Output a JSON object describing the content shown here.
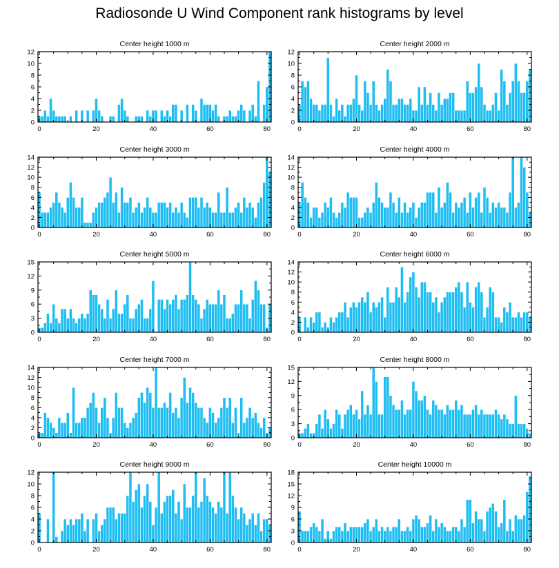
{
  "chart_data": {
    "title": "Radiosonde U Wind Component rank histograms by level",
    "type": "bar",
    "bar_color": "#1ebdf2",
    "x_ticks": [
      0,
      20,
      40,
      60,
      80
    ],
    "xlim": [
      -0.5,
      81.5
    ],
    "panels": [
      {
        "title": "Center height 1000 m",
        "ylim": [
          0,
          12
        ],
        "y_ticks": [
          0,
          2,
          4,
          6,
          8,
          10,
          12
        ],
        "values": [
          1,
          1,
          2,
          1,
          4,
          2,
          1,
          1,
          1,
          1,
          0,
          1,
          0,
          2,
          0,
          2,
          0,
          2,
          0,
          2,
          4,
          2,
          1,
          0,
          0,
          1,
          1,
          0,
          3,
          4,
          2,
          1,
          0,
          0,
          1,
          1,
          1,
          0,
          2,
          1,
          2,
          2,
          0,
          2,
          1,
          2,
          1,
          3,
          3,
          0,
          2,
          0,
          3,
          0,
          3,
          2,
          0,
          4,
          3,
          3,
          3,
          2,
          3,
          1,
          0,
          1,
          1,
          2,
          1,
          1,
          2,
          3,
          2,
          0,
          2,
          3,
          1,
          7,
          0,
          3,
          6,
          12
        ]
      },
      {
        "title": "Center height 2000 m",
        "ylim": [
          0,
          12
        ],
        "y_ticks": [
          0,
          2,
          4,
          6,
          8,
          10,
          12
        ],
        "values": [
          3,
          7,
          6,
          7,
          4,
          3,
          3,
          2,
          3,
          3,
          11,
          3,
          1,
          4,
          2,
          3,
          1,
          3,
          3,
          4,
          8,
          3,
          2,
          7,
          5,
          3,
          7,
          3,
          2,
          3,
          4,
          9,
          7,
          3,
          3,
          4,
          4,
          3,
          3,
          4,
          2,
          2,
          6,
          3,
          6,
          3,
          5,
          3,
          2,
          5,
          3,
          4,
          4,
          5,
          5,
          2,
          2,
          2,
          2,
          7,
          5,
          5,
          6,
          10,
          6,
          3,
          2,
          2,
          3,
          5,
          2,
          9,
          7,
          3,
          5,
          7,
          10,
          7,
          5,
          5,
          7,
          9
        ]
      },
      {
        "title": "Center height 3000 m",
        "ylim": [
          0,
          14
        ],
        "y_ticks": [
          0,
          2,
          4,
          6,
          8,
          10,
          12,
          14
        ],
        "values": [
          7,
          3,
          3,
          3,
          4,
          5,
          7,
          5,
          4,
          3,
          6,
          9,
          6,
          4,
          4,
          6,
          1,
          1,
          1,
          3,
          4,
          5,
          5,
          6,
          7,
          10,
          5,
          7,
          3,
          8,
          5,
          5,
          6,
          3,
          4,
          5,
          3,
          4,
          6,
          4,
          3,
          3,
          5,
          5,
          5,
          4,
          5,
          3,
          4,
          3,
          5,
          3,
          2,
          6,
          6,
          6,
          4,
          6,
          4,
          5,
          4,
          3,
          3,
          7,
          3,
          3,
          8,
          3,
          3,
          4,
          5,
          3,
          6,
          4,
          5,
          4,
          2,
          5,
          6,
          9,
          14,
          11
        ]
      },
      {
        "title": "Center height 4000 m",
        "ylim": [
          0,
          14
        ],
        "y_ticks": [
          0,
          2,
          4,
          6,
          8,
          10,
          12,
          14
        ],
        "values": [
          5,
          9,
          6,
          5,
          2,
          4,
          4,
          2,
          3,
          5,
          4,
          6,
          3,
          2,
          3,
          5,
          4,
          7,
          6,
          6,
          6,
          2,
          2,
          3,
          4,
          3,
          5,
          9,
          6,
          5,
          4,
          4,
          7,
          5,
          3,
          6,
          3,
          5,
          3,
          4,
          5,
          2,
          4,
          5,
          5,
          7,
          7,
          7,
          3,
          8,
          4,
          5,
          9,
          7,
          3,
          5,
          4,
          5,
          6,
          3,
          7,
          4,
          6,
          7,
          3,
          8,
          6,
          3,
          5,
          4,
          5,
          4,
          4,
          3,
          7,
          14,
          4,
          5,
          14,
          12,
          7,
          3
        ]
      },
      {
        "title": "Center height 5000 m",
        "ylim": [
          0,
          15
        ],
        "y_ticks": [
          0,
          3,
          6,
          9,
          12,
          15
        ],
        "values": [
          1,
          1,
          2,
          4,
          2,
          6,
          3,
          2,
          5,
          5,
          3,
          5,
          3,
          2,
          3,
          4,
          3,
          4,
          9,
          8,
          8,
          6,
          5,
          3,
          7,
          3,
          5,
          9,
          4,
          4,
          6,
          8,
          3,
          3,
          5,
          6,
          7,
          3,
          3,
          5,
          11,
          0,
          7,
          7,
          5,
          7,
          6,
          7,
          8,
          5,
          7,
          7,
          8,
          15,
          8,
          7,
          6,
          3,
          5,
          7,
          6,
          6,
          6,
          9,
          6,
          8,
          3,
          3,
          4,
          6,
          6,
          9,
          6,
          6,
          3,
          7,
          11,
          9,
          6,
          6,
          1,
          6
        ]
      },
      {
        "title": "Center height 6000 m",
        "ylim": [
          0,
          14
        ],
        "y_ticks": [
          0,
          2,
          4,
          6,
          8,
          10,
          12,
          14
        ],
        "values": [
          3,
          0,
          3,
          1,
          3,
          2,
          4,
          4,
          1,
          2,
          1,
          3,
          2,
          3,
          4,
          4,
          6,
          3,
          5,
          6,
          5,
          6,
          7,
          6,
          8,
          4,
          6,
          5,
          6,
          7,
          3,
          9,
          6,
          6,
          9,
          7,
          13,
          6,
          8,
          11,
          12,
          9,
          7,
          10,
          10,
          8,
          8,
          6,
          7,
          4,
          6,
          7,
          8,
          8,
          8,
          9,
          10,
          8,
          5,
          10,
          6,
          5,
          9,
          10,
          8,
          3,
          5,
          9,
          8,
          3,
          3,
          2,
          5,
          4,
          6,
          3,
          3,
          4,
          3,
          4,
          4,
          3
        ]
      },
      {
        "title": "Center height 7000 m",
        "ylim": [
          0,
          14
        ],
        "y_ticks": [
          0,
          2,
          4,
          6,
          8,
          10,
          12,
          14
        ],
        "values": [
          1,
          1,
          5,
          4,
          3,
          2,
          1,
          4,
          3,
          3,
          5,
          1,
          10,
          3,
          3,
          4,
          4,
          6,
          7,
          9,
          6,
          3,
          6,
          8,
          4,
          1,
          4,
          9,
          6,
          6,
          3,
          2,
          3,
          4,
          5,
          8,
          9,
          7,
          10,
          9,
          6,
          14,
          6,
          6,
          7,
          6,
          9,
          5,
          6,
          4,
          8,
          12,
          7,
          10,
          9,
          7,
          6,
          6,
          4,
          3,
          6,
          5,
          3,
          4,
          6,
          8,
          6,
          8,
          3,
          6,
          1,
          8,
          3,
          4,
          6,
          4,
          5,
          3,
          2,
          4,
          1,
          2
        ]
      },
      {
        "title": "Center height 8000 m",
        "ylim": [
          0,
          15
        ],
        "y_ticks": [
          0,
          3,
          6,
          9,
          12,
          15
        ],
        "values": [
          1,
          1,
          2,
          3,
          1,
          1,
          3,
          5,
          2,
          6,
          4,
          2,
          3,
          6,
          5,
          2,
          5,
          6,
          7,
          5,
          6,
          4,
          10,
          5,
          7,
          5,
          15,
          12,
          5,
          5,
          13,
          13,
          9,
          7,
          6,
          6,
          8,
          5,
          6,
          6,
          12,
          10,
          8,
          8,
          9,
          6,
          5,
          8,
          7,
          6,
          6,
          5,
          7,
          6,
          6,
          8,
          6,
          7,
          5,
          5,
          5,
          6,
          7,
          5,
          6,
          5,
          5,
          5,
          5,
          6,
          5,
          4,
          5,
          4,
          3,
          3,
          9,
          3,
          3,
          3,
          2,
          1
        ]
      },
      {
        "title": "Center height 9000 m",
        "ylim": [
          0,
          12
        ],
        "y_ticks": [
          0,
          2,
          4,
          6,
          8,
          10,
          12
        ],
        "values": [
          5,
          0,
          0,
          4,
          0,
          12,
          1,
          0,
          2,
          4,
          3,
          4,
          3,
          4,
          4,
          5,
          2,
          4,
          0,
          4,
          5,
          2,
          3,
          4,
          6,
          6,
          6,
          4,
          5,
          5,
          5,
          8,
          12,
          7,
          9,
          10,
          6,
          8,
          10,
          7,
          3,
          6,
          12,
          5,
          7,
          8,
          8,
          9,
          5,
          7,
          4,
          10,
          6,
          6,
          8,
          12,
          6,
          7,
          11,
          8,
          7,
          6,
          5,
          7,
          6,
          12,
          5,
          12,
          8,
          6,
          4,
          6,
          5,
          3,
          4,
          5,
          3,
          5,
          2,
          4,
          4,
          3
        ]
      },
      {
        "title": "Center height 10000 m",
        "ylim": [
          0,
          18
        ],
        "y_ticks": [
          0,
          3,
          6,
          9,
          12,
          15,
          18
        ],
        "values": [
          8,
          3,
          3,
          3,
          4,
          5,
          4,
          3,
          6,
          1,
          3,
          1,
          3,
          4,
          4,
          3,
          5,
          3,
          4,
          4,
          4,
          4,
          4,
          5,
          6,
          3,
          4,
          6,
          3,
          4,
          3,
          4,
          3,
          4,
          4,
          6,
          3,
          3,
          4,
          3,
          6,
          7,
          6,
          4,
          4,
          5,
          7,
          3,
          6,
          4,
          5,
          4,
          3,
          3,
          4,
          4,
          3,
          6,
          4,
          11,
          11,
          5,
          8,
          6,
          6,
          3,
          8,
          9,
          10,
          8,
          4,
          5,
          11,
          3,
          6,
          3,
          7,
          6,
          6,
          7,
          13,
          17
        ]
      }
    ]
  }
}
